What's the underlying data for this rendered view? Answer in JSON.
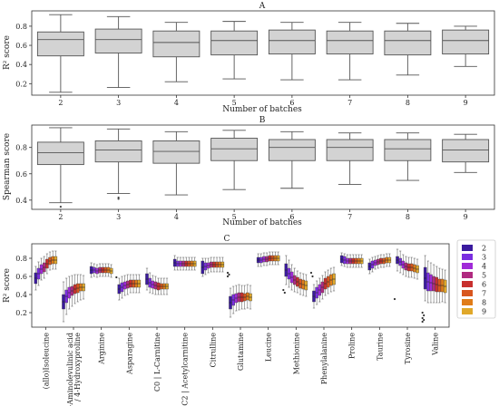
{
  "chart_data": [
    {
      "type": "box",
      "panel": "A",
      "xlabel": "Number of batches",
      "ylabel": "R² score",
      "ylim": [
        0.08,
        0.96
      ],
      "yticks": [
        0.2,
        0.4,
        0.6,
        0.8
      ],
      "categories": [
        "2",
        "3",
        "4",
        "5",
        "6",
        "7",
        "8",
        "9"
      ],
      "boxes": [
        {
          "min": 0.11,
          "q1": 0.49,
          "median": 0.66,
          "q3": 0.74,
          "max": 0.92
        },
        {
          "min": 0.16,
          "q1": 0.52,
          "median": 0.66,
          "q3": 0.77,
          "max": 0.9
        },
        {
          "min": 0.22,
          "q1": 0.48,
          "median": 0.63,
          "q3": 0.75,
          "max": 0.84
        },
        {
          "min": 0.25,
          "q1": 0.5,
          "median": 0.65,
          "q3": 0.75,
          "max": 0.85
        },
        {
          "min": 0.24,
          "q1": 0.51,
          "median": 0.65,
          "q3": 0.76,
          "max": 0.84
        },
        {
          "min": 0.24,
          "q1": 0.51,
          "median": 0.65,
          "q3": 0.75,
          "max": 0.84
        },
        {
          "min": 0.29,
          "q1": 0.5,
          "median": 0.65,
          "q3": 0.75,
          "max": 0.83
        },
        {
          "min": 0.38,
          "q1": 0.51,
          "median": 0.65,
          "q3": 0.76,
          "max": 0.8
        }
      ]
    },
    {
      "type": "box",
      "panel": "B",
      "xlabel": "Number of batches",
      "ylabel": "Spearman score",
      "ylim": [
        0.33,
        0.97
      ],
      "yticks": [
        0.4,
        0.6,
        0.8
      ],
      "categories": [
        "2",
        "3",
        "4",
        "5",
        "6",
        "7",
        "8",
        "9"
      ],
      "boxes": [
        {
          "min": 0.38,
          "q1": 0.67,
          "median": 0.76,
          "q3": 0.84,
          "max": 0.95,
          "outliers": [
            0.35
          ]
        },
        {
          "min": 0.45,
          "q1": 0.69,
          "median": 0.78,
          "q3": 0.85,
          "max": 0.94,
          "outliers": [
            0.41,
            0.42
          ]
        },
        {
          "min": 0.44,
          "q1": 0.68,
          "median": 0.77,
          "q3": 0.85,
          "max": 0.92
        },
        {
          "min": 0.48,
          "q1": 0.7,
          "median": 0.79,
          "q3": 0.87,
          "max": 0.93
        },
        {
          "min": 0.49,
          "q1": 0.7,
          "median": 0.8,
          "q3": 0.86,
          "max": 0.92
        },
        {
          "min": 0.52,
          "q1": 0.7,
          "median": 0.8,
          "q3": 0.86,
          "max": 0.91
        },
        {
          "min": 0.55,
          "q1": 0.7,
          "median": 0.79,
          "q3": 0.86,
          "max": 0.91
        },
        {
          "min": 0.61,
          "q1": 0.69,
          "median": 0.78,
          "q3": 0.86,
          "max": 0.9
        }
      ]
    },
    {
      "type": "box",
      "panel": "C",
      "ylabel": "R² score",
      "ylim": [
        0.04,
        0.96
      ],
      "yticks": [
        0.2,
        0.4,
        0.6,
        0.8
      ],
      "categories": [
        "(allo)Isoleucine",
        "5-Aminolevulinic acid / 4-Hydroxyproline",
        "Arginine",
        "Asparagine",
        "C0 | L-Carnitine",
        "C2 | Acetylcarnitine",
        "Citrulline",
        "Glutamine",
        "Leucine",
        "Methionine",
        "Phenylalanine",
        "Proline",
        "Taurine",
        "Tyrosine",
        "Valine"
      ],
      "category_lines": [
        [
          "(allo)Isoleucine"
        ],
        [
          "5-Aminolevulinic acid",
          "/ 4-Hydroxyproline"
        ],
        [
          "Arginine"
        ],
        [
          "Asparagine"
        ],
        [
          "C0 | L-Carnitine"
        ],
        [
          "C2 | Acetylcarnitine"
        ],
        [
          "Citrulline"
        ],
        [
          "Glutamine"
        ],
        [
          "Leucine"
        ],
        [
          "Methionine"
        ],
        [
          "Phenylalanine"
        ],
        [
          "Proline"
        ],
        [
          "Taurine"
        ],
        [
          "Tyrosine"
        ],
        [
          "Valine"
        ]
      ],
      "legend_labels": [
        "2",
        "3",
        "4",
        "5",
        "6",
        "7",
        "8",
        "9"
      ],
      "legend_position": "right",
      "colors": [
        "#3a1a9e",
        "#7a2ee0",
        "#a02ad8",
        "#b02a80",
        "#c8302e",
        "#d8561e",
        "#e07c18",
        "#e0a82a"
      ],
      "medians": [
        [
          0.58,
          0.63,
          0.68,
          0.7,
          0.74,
          0.77,
          0.78,
          0.78
        ],
        [
          0.32,
          0.38,
          0.42,
          0.44,
          0.46,
          0.47,
          0.48,
          0.48
        ],
        [
          0.67,
          0.67,
          0.66,
          0.67,
          0.67,
          0.67,
          0.67,
          0.66
        ],
        [
          0.46,
          0.48,
          0.5,
          0.51,
          0.52,
          0.52,
          0.52,
          0.52
        ],
        [
          0.57,
          0.53,
          0.51,
          0.5,
          0.49,
          0.49,
          0.49,
          0.49
        ],
        [
          0.75,
          0.74,
          0.74,
          0.74,
          0.74,
          0.74,
          0.74,
          0.74
        ],
        [
          0.7,
          0.71,
          0.72,
          0.73,
          0.73,
          0.73,
          0.73,
          0.73
        ],
        [
          0.31,
          0.34,
          0.36,
          0.37,
          0.37,
          0.37,
          0.38,
          0.37
        ],
        [
          0.78,
          0.78,
          0.79,
          0.79,
          0.8,
          0.8,
          0.8,
          0.8
        ],
        [
          0.67,
          0.63,
          0.59,
          0.56,
          0.54,
          0.52,
          0.51,
          0.5
        ],
        [
          0.38,
          0.42,
          0.45,
          0.48,
          0.52,
          0.54,
          0.56,
          0.57
        ],
        [
          0.79,
          0.78,
          0.77,
          0.77,
          0.77,
          0.77,
          0.77,
          0.77
        ],
        [
          0.71,
          0.73,
          0.75,
          0.76,
          0.77,
          0.77,
          0.78,
          0.78
        ],
        [
          0.78,
          0.76,
          0.73,
          0.71,
          0.7,
          0.7,
          0.69,
          0.68
        ],
        [
          0.58,
          0.54,
          0.53,
          0.52,
          0.51,
          0.5,
          0.5,
          0.49
        ]
      ],
      "iqr_half": [
        [
          0.06,
          0.06,
          0.05,
          0.05,
          0.05,
          0.04,
          0.04,
          0.04
        ],
        [
          0.08,
          0.07,
          0.06,
          0.05,
          0.05,
          0.05,
          0.04,
          0.04
        ],
        [
          0.04,
          0.03,
          0.03,
          0.03,
          0.03,
          0.03,
          0.03,
          0.03
        ],
        [
          0.05,
          0.05,
          0.04,
          0.04,
          0.04,
          0.04,
          0.04,
          0.04
        ],
        [
          0.06,
          0.05,
          0.04,
          0.04,
          0.04,
          0.03,
          0.03,
          0.03
        ],
        [
          0.04,
          0.03,
          0.03,
          0.03,
          0.03,
          0.03,
          0.03,
          0.03
        ],
        [
          0.07,
          0.04,
          0.03,
          0.03,
          0.03,
          0.03,
          0.03,
          0.03
        ],
        [
          0.07,
          0.06,
          0.05,
          0.05,
          0.05,
          0.04,
          0.04,
          0.04
        ],
        [
          0.03,
          0.03,
          0.03,
          0.03,
          0.03,
          0.03,
          0.03,
          0.03
        ],
        [
          0.07,
          0.06,
          0.06,
          0.05,
          0.05,
          0.05,
          0.05,
          0.05
        ],
        [
          0.06,
          0.06,
          0.06,
          0.06,
          0.06,
          0.06,
          0.06,
          0.06
        ],
        [
          0.04,
          0.04,
          0.03,
          0.03,
          0.03,
          0.03,
          0.03,
          0.03
        ],
        [
          0.04,
          0.04,
          0.03,
          0.03,
          0.03,
          0.03,
          0.03,
          0.03
        ],
        [
          0.04,
          0.04,
          0.04,
          0.04,
          0.04,
          0.04,
          0.04,
          0.04
        ],
        [
          0.12,
          0.1,
          0.09,
          0.08,
          0.08,
          0.07,
          0.07,
          0.07
        ]
      ],
      "whisker_half": [
        [
          0.13,
          0.13,
          0.12,
          0.12,
          0.11,
          0.1,
          0.1,
          0.1
        ],
        [
          0.22,
          0.2,
          0.18,
          0.17,
          0.16,
          0.15,
          0.14,
          0.13
        ],
        [
          0.08,
          0.07,
          0.07,
          0.07,
          0.07,
          0.07,
          0.07,
          0.07
        ],
        [
          0.12,
          0.12,
          0.11,
          0.11,
          0.1,
          0.1,
          0.1,
          0.1
        ],
        [
          0.12,
          0.11,
          0.1,
          0.1,
          0.09,
          0.09,
          0.09,
          0.09
        ],
        [
          0.08,
          0.07,
          0.07,
          0.07,
          0.07,
          0.07,
          0.07,
          0.07
        ],
        [
          0.1,
          0.09,
          0.08,
          0.08,
          0.08,
          0.08,
          0.08,
          0.08
        ],
        [
          0.16,
          0.15,
          0.14,
          0.14,
          0.13,
          0.13,
          0.13,
          0.13
        ],
        [
          0.07,
          0.07,
          0.07,
          0.07,
          0.07,
          0.07,
          0.07,
          0.07
        ],
        [
          0.16,
          0.15,
          0.14,
          0.13,
          0.12,
          0.12,
          0.12,
          0.12
        ],
        [
          0.13,
          0.13,
          0.13,
          0.13,
          0.13,
          0.13,
          0.13,
          0.13
        ],
        [
          0.07,
          0.07,
          0.07,
          0.07,
          0.07,
          0.07,
          0.07,
          0.07
        ],
        [
          0.08,
          0.08,
          0.07,
          0.07,
          0.07,
          0.07,
          0.07,
          0.07
        ],
        [
          0.12,
          0.12,
          0.11,
          0.11,
          0.11,
          0.11,
          0.11,
          0.11
        ],
        [
          0.25,
          0.23,
          0.22,
          0.21,
          0.2,
          0.19,
          0.18,
          0.18
        ]
      ],
      "outliers": [
        {
          "category": 3,
          "batch": 0,
          "values": [
            0.59
          ]
        },
        {
          "category": 7,
          "batch": 0,
          "values": [
            0.64,
            0.62,
            0.6
          ]
        },
        {
          "category": 9,
          "batch": 0,
          "values": [
            0.45,
            0.42
          ]
        },
        {
          "category": 10,
          "batch": 0,
          "values": [
            0.64,
            0.6
          ]
        },
        {
          "category": 13,
          "batch": 0,
          "values": [
            0.35
          ]
        },
        {
          "category": 14,
          "batch": 0,
          "values": [
            0.2,
            0.17,
            0.14,
            0.12,
            0.1
          ]
        }
      ]
    }
  ]
}
